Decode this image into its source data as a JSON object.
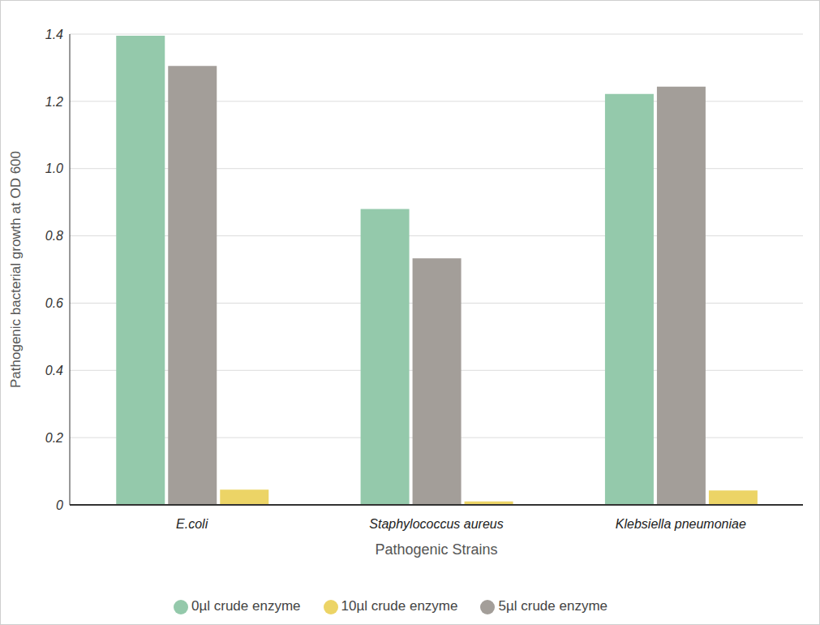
{
  "chart_data": {
    "type": "bar",
    "categories": [
      "E.coli",
      "Staphylococcus aureus",
      "Klebsiella pneumoniae"
    ],
    "series": [
      {
        "name": "0µl crude enzyme",
        "color": "#94c9ab",
        "values": [
          1.395,
          0.88,
          1.222
        ]
      },
      {
        "name": "5µl crude enzyme",
        "color": "#a39e99",
        "values": [
          1.305,
          0.733,
          1.244
        ]
      },
      {
        "name": "10µl crude enzyme",
        "color": "#ecd466",
        "values": [
          0.045,
          0.01,
          0.043
        ]
      }
    ],
    "x_label": "Pathogenic Strains",
    "y_label": "Pathogenic bacterial growth at OD 600",
    "ylim": [
      0,
      1.4
    ],
    "yticks": [
      0,
      0.2,
      0.4,
      0.6,
      0.8,
      {
        "value": 1,
        "label": "1.0"
      },
      1.2,
      1.4
    ],
    "grid": true,
    "legend": "bottom"
  }
}
